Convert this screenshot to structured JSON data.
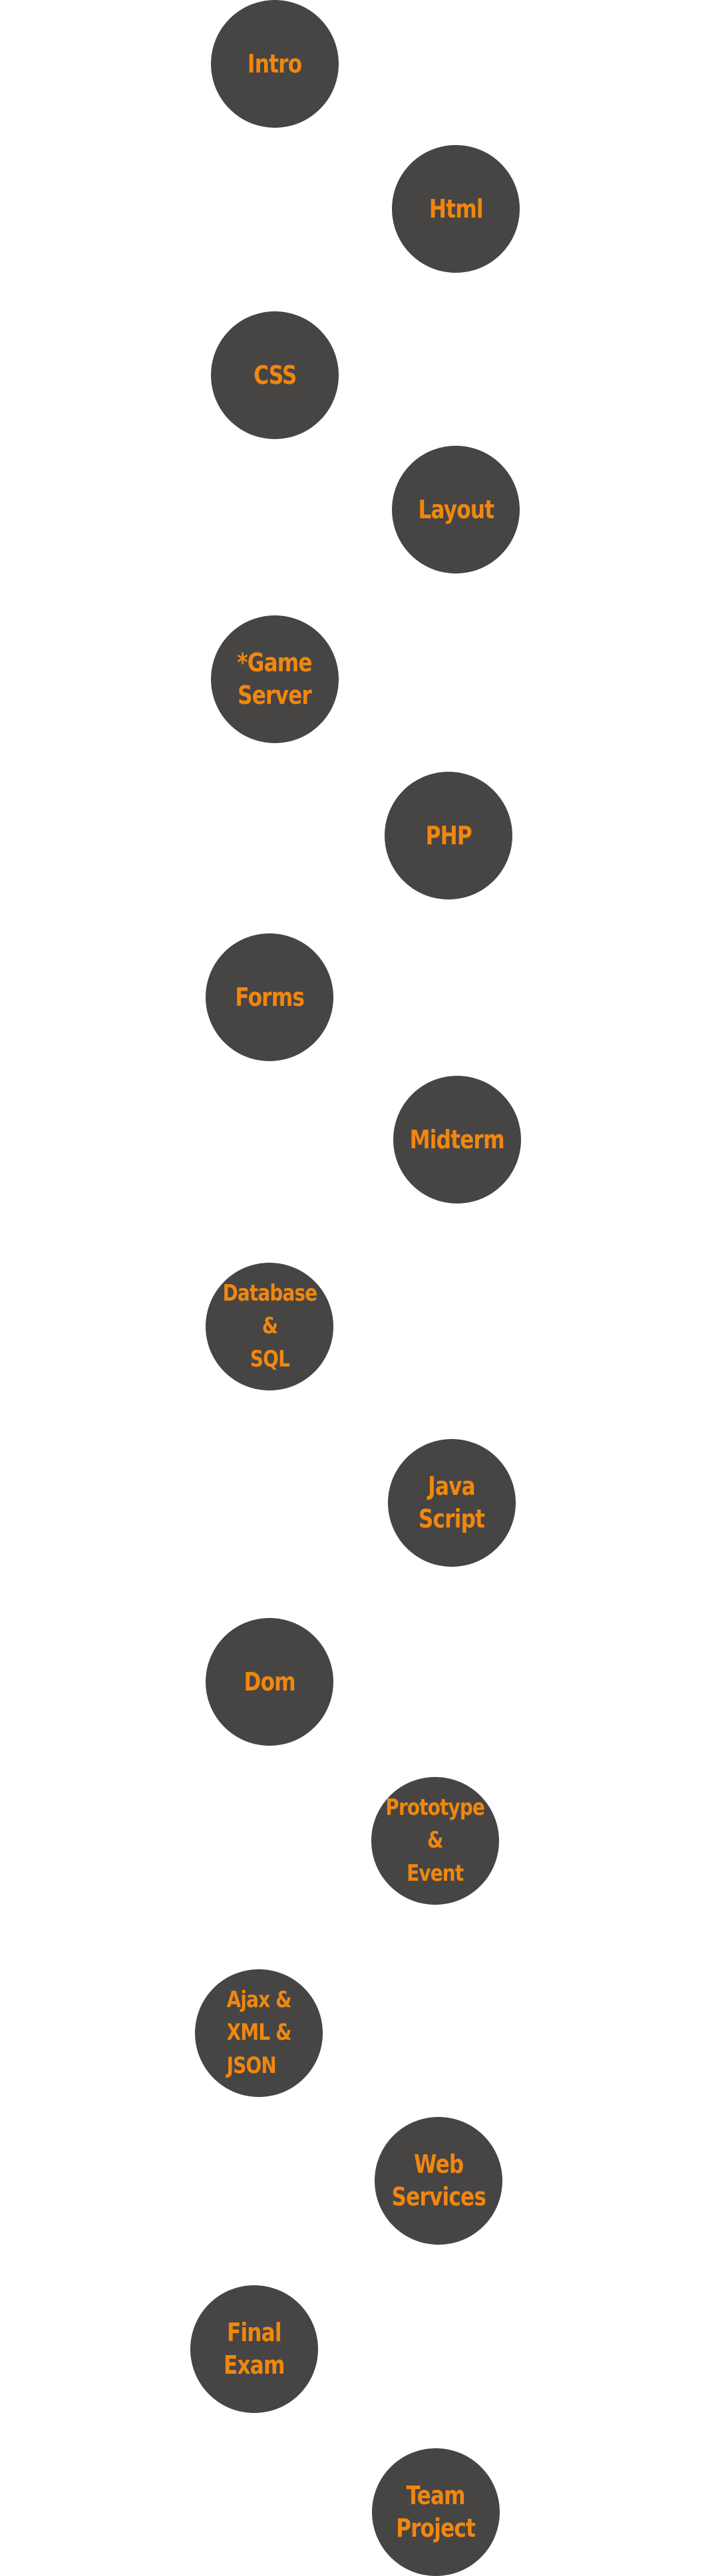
{
  "roadmap": {
    "accent_color": "#f0870f",
    "node_color": "#474444",
    "topics": [
      {
        "label": "Intro"
      },
      {
        "label": "Html"
      },
      {
        "label": "CSS"
      },
      {
        "label": "Layout"
      },
      {
        "label": "*Game\n Server"
      },
      {
        "label": "PHP"
      },
      {
        "label": "Forms"
      },
      {
        "label": "Midterm"
      },
      {
        "label": "Database\n&\nSQL"
      },
      {
        "label": "Java\nScript"
      },
      {
        "label": "Dom"
      },
      {
        "label": "Prototype\n&\nEvent"
      },
      {
        "label": "Ajax &\nXML &\nJSON"
      },
      {
        "label": "Web\nServices"
      },
      {
        "label": "Final\nExam"
      },
      {
        "label": "Team\nProject"
      }
    ]
  }
}
